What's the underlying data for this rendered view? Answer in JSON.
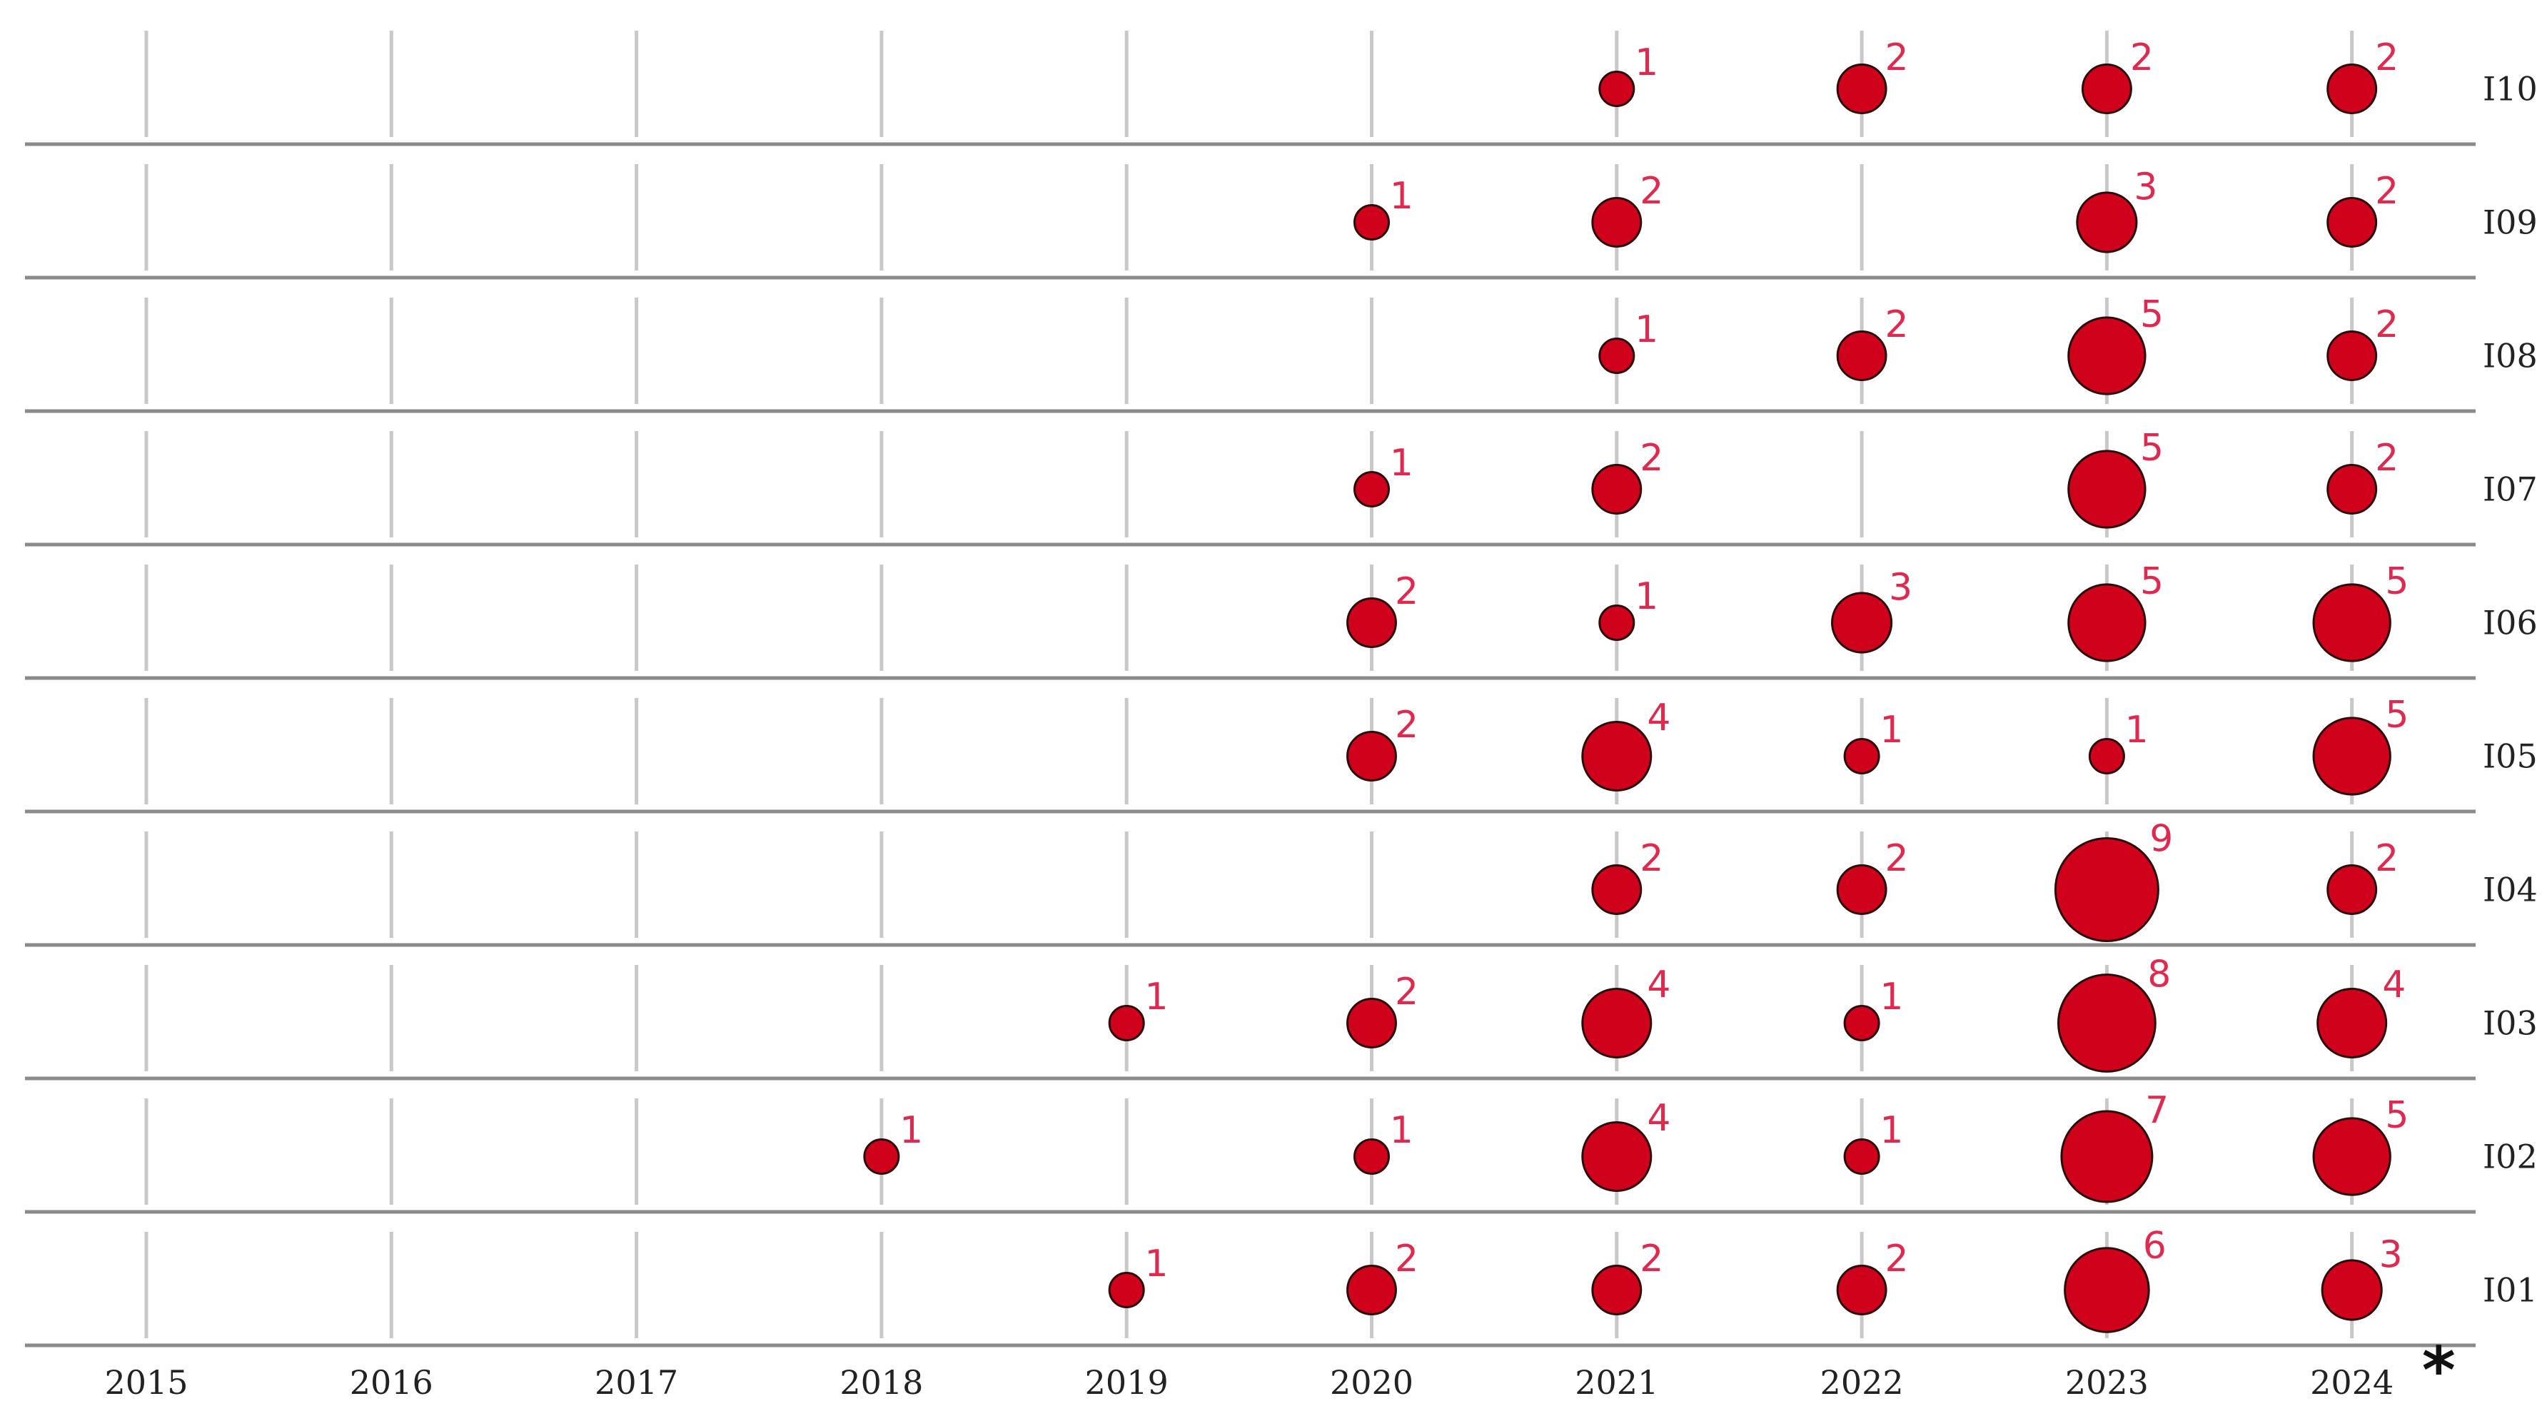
{
  "chart_data": {
    "type": "scatter",
    "subtype": "bubble-matrix",
    "title": "",
    "xlabel": "",
    "ylabel": "",
    "x": [
      "2015",
      "2016",
      "2017",
      "2018",
      "2019",
      "2020",
      "2021",
      "2022",
      "2023",
      "2024"
    ],
    "rows": [
      "I10",
      "I09",
      "I08",
      "I07",
      "I06",
      "I05",
      "I04",
      "I03",
      "I02",
      "I01"
    ],
    "series": [
      {
        "row": "I10",
        "values": [
          null,
          null,
          null,
          null,
          null,
          null,
          1,
          2,
          2,
          2
        ]
      },
      {
        "row": "I09",
        "values": [
          null,
          null,
          null,
          null,
          null,
          1,
          2,
          null,
          3,
          2
        ]
      },
      {
        "row": "I08",
        "values": [
          null,
          null,
          null,
          null,
          null,
          null,
          1,
          2,
          5,
          2
        ]
      },
      {
        "row": "I07",
        "values": [
          null,
          null,
          null,
          null,
          null,
          1,
          2,
          null,
          5,
          2
        ]
      },
      {
        "row": "I06",
        "values": [
          null,
          null,
          null,
          null,
          null,
          2,
          1,
          3,
          5,
          5
        ]
      },
      {
        "row": "I05",
        "values": [
          null,
          null,
          null,
          null,
          null,
          2,
          4,
          1,
          1,
          5
        ]
      },
      {
        "row": "I04",
        "values": [
          null,
          null,
          null,
          null,
          null,
          null,
          2,
          2,
          9,
          2
        ]
      },
      {
        "row": "I03",
        "values": [
          null,
          null,
          null,
          null,
          1,
          2,
          4,
          1,
          8,
          4
        ]
      },
      {
        "row": "I02",
        "values": [
          null,
          null,
          null,
          1,
          null,
          1,
          4,
          1,
          7,
          5
        ]
      },
      {
        "row": "I01",
        "values": [
          null,
          null,
          null,
          null,
          1,
          2,
          2,
          2,
          6,
          3
        ]
      }
    ],
    "annotation": "*",
    "grid": true,
    "colors": {
      "bubble_fill": "#d0021b",
      "bubble_stroke": "#2a0a0a",
      "label": "#e0294f",
      "gridline": "#c8c8c8",
      "row_divider": "#8a8a8a"
    }
  }
}
